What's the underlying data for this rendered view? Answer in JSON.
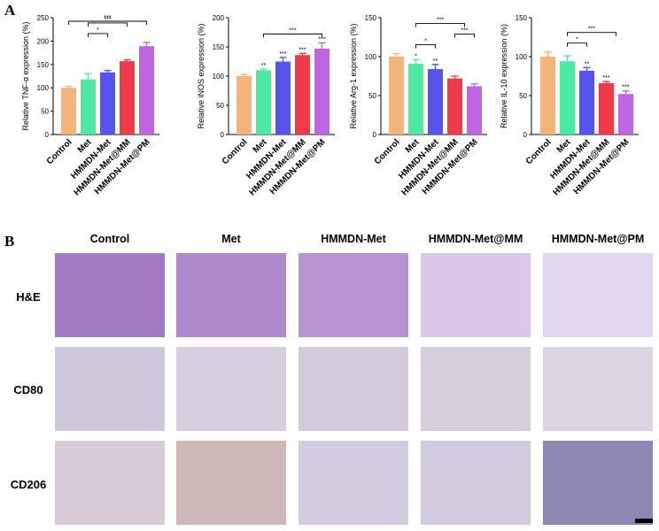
{
  "panel_labels": {
    "a": "A",
    "b": "B"
  },
  "chart_data": [
    {
      "type": "bar",
      "categories": [
        "Control",
        "Met",
        "HMMDN-Met",
        "HMMDN-Met@MM",
        "HMMDN-Met@PM"
      ],
      "values": [
        100,
        118,
        133,
        157,
        189
      ],
      "errors": [
        3,
        12,
        4,
        3,
        8
      ],
      "ylabel": "Relative TNF-α expression (%)",
      "ylim": [
        0,
        250
      ],
      "yticks": [
        0,
        50,
        100,
        150,
        200,
        250
      ],
      "colors": [
        "#f3b57c",
        "#4de8a2",
        "#5555ee",
        "#f03a4a",
        "#c064e0"
      ],
      "bar_labels": [
        "",
        "",
        "",
        "",
        ""
      ],
      "brackets": [
        {
          "from": 1,
          "to": 2,
          "label": "*"
        },
        {
          "from": 1,
          "to": 3,
          "label": "***"
        },
        {
          "from": 0,
          "to": 4,
          "label": "***"
        }
      ]
    },
    {
      "type": "bar",
      "categories": [
        "Control",
        "Met",
        "HMMDN-Met",
        "HMMDN-Met@MM",
        "HMMDN-Met@PM"
      ],
      "values": [
        100,
        110,
        125,
        136,
        147
      ],
      "errors": [
        3,
        2,
        7,
        3,
        10
      ],
      "ylabel": "Relative iNOS expression (%)",
      "ylim": [
        0,
        200
      ],
      "yticks": [
        0,
        50,
        100,
        150,
        200
      ],
      "colors": [
        "#f3b57c",
        "#4de8a2",
        "#5555ee",
        "#f03a4a",
        "#c064e0"
      ],
      "bar_labels": [
        "",
        "**",
        "***",
        "***",
        "***"
      ],
      "brackets": [
        {
          "from": 1,
          "to": 4,
          "label": "***"
        }
      ]
    },
    {
      "type": "bar",
      "categories": [
        "Control",
        "Met",
        "HMMDN-Met",
        "HMMDN-Met@MM",
        "HMMDN-Met@PM"
      ],
      "values": [
        100,
        91,
        84,
        72,
        62
      ],
      "errors": [
        4,
        5,
        6,
        3,
        3
      ],
      "ylabel": "Relative Arg-1 expression (%)",
      "ylim": [
        0,
        150
      ],
      "yticks": [
        0,
        50,
        100,
        150
      ],
      "colors": [
        "#f3b57c",
        "#4de8a2",
        "#5555ee",
        "#f03a4a",
        "#c064e0"
      ],
      "bar_labels": [
        "",
        "*",
        "**",
        "",
        ""
      ],
      "brackets": [
        {
          "from": 1,
          "to": 2,
          "label": "*"
        },
        {
          "from": 3,
          "to": 4,
          "label": "***"
        },
        {
          "from": 1,
          "to": 3.5,
          "label": "***"
        }
      ]
    },
    {
      "type": "bar",
      "categories": [
        "Control",
        "Met",
        "HMMDN-Met",
        "HMMDN-Met@MM",
        "HMMDN-Met@PM"
      ],
      "values": [
        100,
        94,
        82,
        66,
        52
      ],
      "errors": [
        6,
        7,
        4,
        2,
        4
      ],
      "ylabel": "Relative IL-10 expression (%)",
      "ylim": [
        0,
        150
      ],
      "yticks": [
        0,
        50,
        100,
        150
      ],
      "colors": [
        "#f3b57c",
        "#4de8a2",
        "#5555ee",
        "#f03a4a",
        "#c064e0"
      ],
      "bar_labels": [
        "",
        "",
        "**",
        "***",
        "***"
      ],
      "brackets": [
        {
          "from": 1,
          "to": 2,
          "label": "*"
        },
        {
          "from": 1,
          "to": 3.5,
          "label": "***"
        }
      ]
    }
  ],
  "micrographs": {
    "columns": [
      "Control",
      "Met",
      "HMMDN-Met",
      "HMMDN-Met@MM",
      "HMMDN-Met@PM"
    ],
    "rows": [
      "H&E",
      "CD80",
      "CD206"
    ]
  }
}
